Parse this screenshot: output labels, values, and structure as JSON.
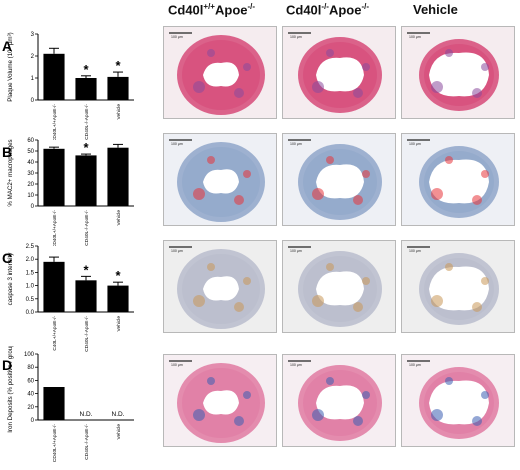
{
  "columns": {
    "col1": {
      "prefix": "Cd40l",
      "sup": "+/+",
      "mid": "Apoe",
      "sup2": "-/-"
    },
    "col2": {
      "prefix": "Cd40l",
      "sup": "-/-",
      "mid": "Apoe",
      "sup2": "-/-"
    },
    "col3": {
      "text": "Vehicle"
    }
  },
  "rows": [
    "A",
    "B",
    "C",
    "D"
  ],
  "scale_bar_label": "100 µm",
  "charts_categories_A": [
    "CD40L+/+ApoE-/-",
    "CD40L-/-ApoE-/-",
    "Vehicle"
  ],
  "charts_categories_B": [
    "CD40L+/+ApoE-/-",
    "CD40L-/-ApoE-/-",
    "Vehicle"
  ],
  "charts_categories_C": [
    "C40L+/+ApoE-/-",
    "CD40L-/-ApoE-/-",
    "Vehicle"
  ],
  "charts_categories_D": [
    "CD40L+/+ApoE-/-",
    "CD40L-/-ApoE-/-",
    "Vehicle"
  ],
  "chart_data": [
    {
      "type": "bar",
      "panel": "A",
      "ylabel": "Plaque Volume (10⁶ µm³)",
      "ylim": [
        0,
        3
      ],
      "yticks": [
        "0",
        "1",
        "2",
        "3"
      ],
      "values": [
        2.1,
        1.0,
        1.05
      ],
      "errors": [
        0.25,
        0.1,
        0.22
      ],
      "significance": [
        "",
        "*",
        "*"
      ],
      "bar_colors": [
        "#000000"
      ]
    },
    {
      "type": "bar",
      "panel": "B",
      "ylabel": "% MAC2+ macrophages",
      "ylim": [
        0,
        60
      ],
      "yticks": [
        "0",
        "10",
        "20",
        "30",
        "40",
        "50",
        "60"
      ],
      "values": [
        52,
        46,
        53
      ],
      "errors": [
        1.5,
        1.2,
        3
      ],
      "significance": [
        "",
        "*",
        ""
      ],
      "bar_colors": [
        "#000000"
      ]
    },
    {
      "type": "bar",
      "panel": "C",
      "ylabel": "caspase 3 intensity",
      "ylim": [
        0,
        2.5
      ],
      "yticks": [
        "0.0",
        "0.5",
        "1.0",
        "1.5",
        "2.0",
        "2.5"
      ],
      "values": [
        1.9,
        1.2,
        1.0
      ],
      "errors": [
        0.18,
        0.15,
        0.13
      ],
      "significance": [
        "",
        "*",
        "*"
      ],
      "bar_colors": [
        "#000000"
      ]
    },
    {
      "type": "bar",
      "panel": "D",
      "ylabel": "Iron Deposits (% positive / group)",
      "ylim": [
        0,
        100
      ],
      "yticks": [
        "0",
        "20",
        "40",
        "60",
        "80",
        "100"
      ],
      "values": [
        50,
        0,
        0
      ],
      "errors": [
        0,
        0,
        0
      ],
      "significance": [
        "",
        "",
        ""
      ],
      "annotations": [
        "",
        "N.D.",
        "N.D."
      ],
      "bar_colors": [
        "#000000"
      ]
    }
  ],
  "micrograph_colors": {
    "A": {
      "bg": "#f5ecef",
      "tissue": "#d64a78",
      "lumen": "#ffffff",
      "accent": "#8b4a9c"
    },
    "B": {
      "bg": "#eef0f5",
      "tissue": "#8fa6c9",
      "lumen": "#ffffff",
      "accent": "#e8343a"
    },
    "C": {
      "bg": "#eeeeee",
      "tissue": "#b9bccc",
      "lumen": "#ffffff",
      "accent": "#c89858"
    },
    "D": {
      "bg": "#f6eef2",
      "tissue": "#e07aa2",
      "lumen": "#ffffff",
      "accent": "#3d5fb3"
    }
  }
}
